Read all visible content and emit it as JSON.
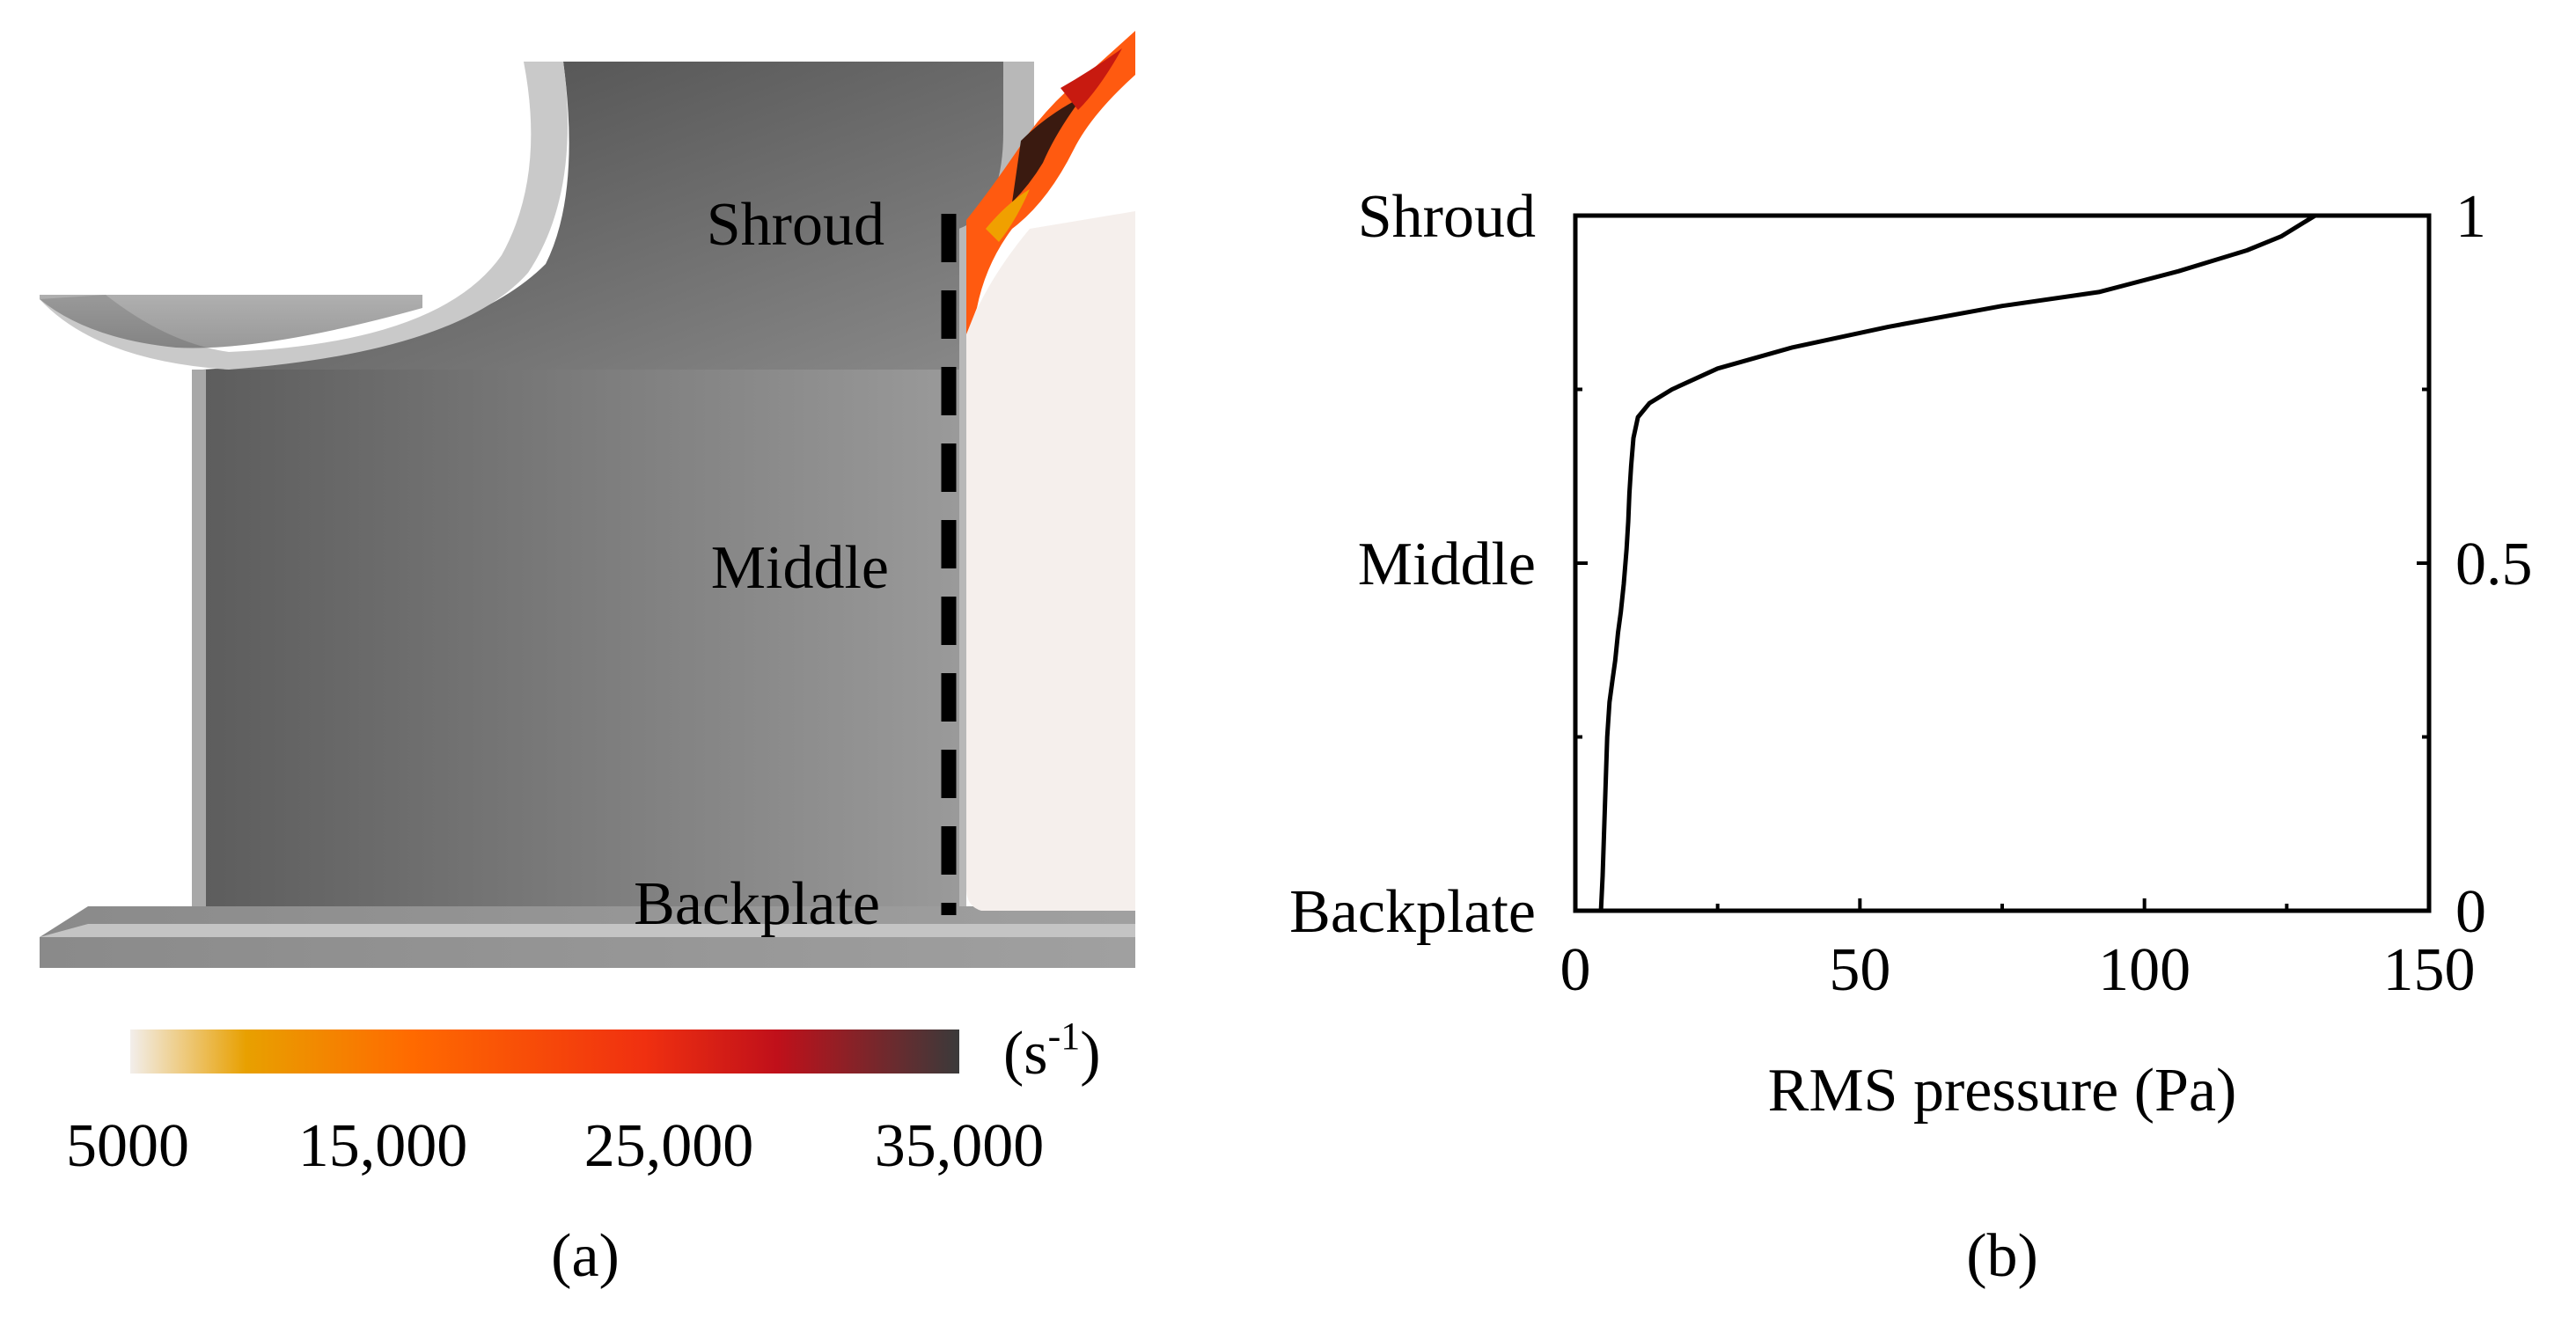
{
  "panel_a": {
    "caption": "(a)",
    "labels": {
      "shroud": "Shroud",
      "middle": "Middle",
      "backplate": "Backplate"
    },
    "colorbar": {
      "unit_base": "(s",
      "unit_exp": "-1",
      "unit_close": ")",
      "ticks": [
        "5000",
        "15,000",
        "25,000",
        "35,000"
      ],
      "colors": [
        "#f2eeeb",
        "#e8a000",
        "#ff6a00",
        "#f03010",
        "#c0101a",
        "#3a3a3a"
      ]
    }
  },
  "panel_b": {
    "caption": "(b)",
    "chart_data": {
      "type": "line",
      "xlabel": "RMS pressure (Pa)",
      "ylabel": "",
      "xlim": [
        0,
        150
      ],
      "ylim": [
        0,
        1
      ],
      "x_ticks": [
        "0",
        "50",
        "100",
        "150"
      ],
      "y_ticks_right": [
        "0",
        "0.5",
        "1"
      ],
      "y_ticks_left": [
        "Backplate",
        "Middle",
        "Shroud"
      ],
      "grid": false,
      "series": [
        {
          "x": [
            4.5,
            4.8,
            5.0,
            5.2,
            5.4,
            5.6,
            6.0,
            6.5,
            7.0,
            7.5,
            8.0,
            8.5,
            9.0,
            9.3,
            9.5,
            9.8,
            10.2,
            11.0,
            13.0,
            17.0,
            25.0,
            38.0,
            55.0,
            75.0,
            92.0,
            106.0,
            118.0,
            124.0,
            128.0,
            130.0
          ],
          "y": [
            0.0,
            0.05,
            0.1,
            0.15,
            0.2,
            0.25,
            0.3,
            0.33,
            0.36,
            0.4,
            0.43,
            0.47,
            0.52,
            0.56,
            0.6,
            0.64,
            0.68,
            0.71,
            0.73,
            0.75,
            0.78,
            0.81,
            0.84,
            0.87,
            0.89,
            0.92,
            0.95,
            0.97,
            0.99,
            1.0
          ],
          "color": "#000000"
        }
      ]
    }
  }
}
